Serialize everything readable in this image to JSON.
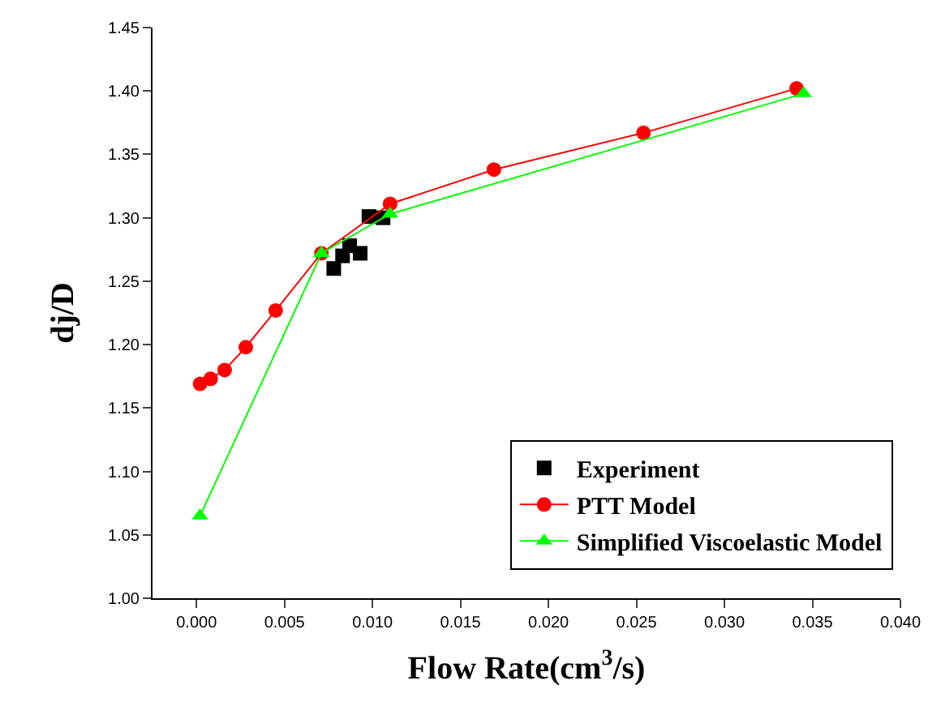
{
  "chart_data": {
    "type": "line",
    "xlabel": "Flow Rate(cm$^{3}$/s)",
    "ylabel": "dj/D",
    "xlim": [
      -0.0025,
      0.04
    ],
    "xticks": [
      {
        "value": 0,
        "label": "0.000"
      },
      {
        "value": 0.005,
        "label": "0.005"
      },
      {
        "value": 0.01,
        "label": "0.010"
      },
      {
        "value": 0.015,
        "label": "0.015"
      },
      {
        "value": 0.02,
        "label": "0.020"
      },
      {
        "value": 0.025,
        "label": "0.025"
      },
      {
        "value": 0.03,
        "label": "0.030"
      },
      {
        "value": 0.035,
        "label": "0.035"
      },
      {
        "value": 0.04,
        "label": "0.040"
      }
    ],
    "ylim": [
      1.0,
      1.45
    ],
    "yticks": [
      {
        "value": 1.0,
        "label": "1.00"
      },
      {
        "value": 1.05,
        "label": "1.05"
      },
      {
        "value": 1.1,
        "label": "1.10"
      },
      {
        "value": 1.15,
        "label": "1.15"
      },
      {
        "value": 1.2,
        "label": "1.20"
      },
      {
        "value": 1.25,
        "label": "1.25"
      },
      {
        "value": 1.3,
        "label": "1.30"
      },
      {
        "value": 1.35,
        "label": "1.35"
      },
      {
        "value": 1.4,
        "label": "1.40"
      },
      {
        "value": 1.45,
        "label": "1.45"
      }
    ],
    "grid": false,
    "legend": "bottom right",
    "line_style": "solid",
    "series": [
      {
        "name": "Experiment",
        "type": "scatter",
        "marker": "square",
        "color": "#000000",
        "x": [
          0.0078,
          0.0083,
          0.0087,
          0.0093,
          0.0098,
          0.0106
        ],
        "values": [
          1.26,
          1.27,
          1.278,
          1.272,
          1.301,
          1.3
        ]
      },
      {
        "name": "PTT Model",
        "marker": "circle",
        "color": "#ff0000",
        "x": [
          0.0002,
          0.0008,
          0.0016,
          0.0028,
          0.0045,
          0.0071,
          0.011,
          0.0169,
          0.0254,
          0.0341
        ],
        "values": [
          1.169,
          1.173,
          1.18,
          1.198,
          1.227,
          1.272,
          1.311,
          1.338,
          1.367,
          1.402
        ]
      },
      {
        "name": "Simplified Viscoelastic Model",
        "marker": "triangle",
        "color": "#00ff00",
        "x": [
          0.0002,
          0.0071,
          0.011,
          0.0345
        ],
        "values": [
          1.065,
          1.272,
          1.303,
          1.398
        ]
      }
    ]
  }
}
